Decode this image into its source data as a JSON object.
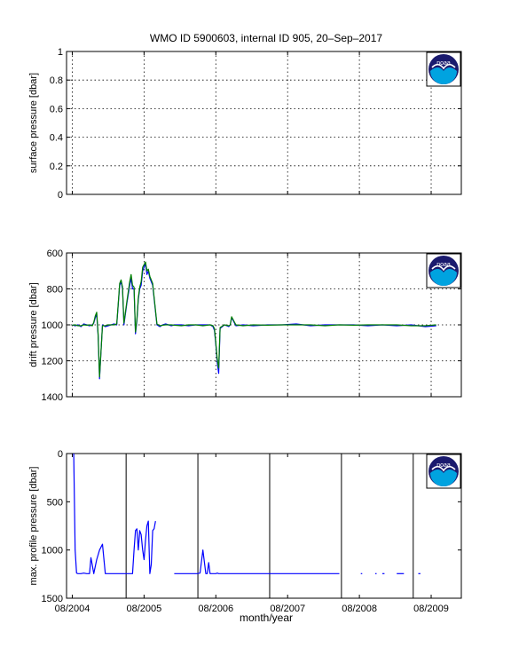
{
  "figure": {
    "title": "WMO ID 5900603, internal ID 905, 20–Sep–2017",
    "xlabel": "month/year"
  },
  "logo": {
    "text": "noaa",
    "colors": {
      "outer": "#1a1a6e",
      "inner": "#00a3e0",
      "bird": "#ffffff"
    }
  },
  "chart_data": [
    {
      "type": "line",
      "ylabel": "surface pressure [dbar]",
      "ylim": [
        0,
        1
      ],
      "y_ticks": [
        "0",
        "0.2",
        "0.4",
        "0.6",
        "0.8",
        "1"
      ],
      "grid": true,
      "series": []
    },
    {
      "type": "line",
      "ylabel": "drift pressure [dbar]",
      "ylim": [
        600,
        1400
      ],
      "y_reversed": true,
      "y_ticks": [
        "600",
        "800",
        "1000",
        "1200",
        "1400"
      ],
      "grid": true,
      "series": [
        {
          "color": "#0000ff",
          "x": [
            2004.58,
            2004.62,
            2004.66,
            2004.7,
            2004.74,
            2004.78,
            2004.82,
            2004.86,
            2004.88,
            2004.9,
            2004.92,
            2004.94,
            2004.96,
            2005.0,
            2005.04,
            2005.08,
            2005.12,
            2005.16,
            2005.2,
            2005.24,
            2005.26,
            2005.28,
            2005.3,
            2005.34,
            2005.38,
            2005.4,
            2005.42,
            2005.44,
            2005.46,
            2005.48,
            2005.5,
            2005.52,
            2005.54,
            2005.56,
            2005.6,
            2005.62,
            2005.64,
            2005.66,
            2005.7,
            2005.76,
            2005.8,
            2005.84,
            2005.88,
            2005.92,
            2005.96,
            2006.0,
            2006.1,
            2006.2,
            2006.3,
            2006.4,
            2006.5,
            2006.54,
            2006.56,
            2006.58,
            2006.6,
            2006.62,
            2006.64,
            2006.7,
            2006.76,
            2006.78,
            2006.8,
            2006.86,
            2006.96,
            2007.1,
            2007.3,
            2007.5,
            2007.7,
            2007.9,
            2008.1,
            2008.3,
            2008.5,
            2008.7,
            2008.9,
            2009.1,
            2009.3,
            2009.5,
            2009.65
          ],
          "y": [
            1000,
            1005,
            1000,
            1010,
            995,
            1000,
            1005,
            1000,
            990,
            960,
            940,
            1060,
            1300,
            1000,
            1010,
            1005,
            1000,
            995,
            1000,
            780,
            760,
            800,
            1000,
            880,
            780,
            740,
            800,
            800,
            1050,
            980,
            860,
            800,
            780,
            700,
            660,
            720,
            700,
            740,
            780,
            1000,
            1010,
            1000,
            995,
            1000,
            1005,
            1000,
            1000,
            1005,
            1000,
            1000,
            1000,
            1010,
            1030,
            1110,
            1210,
            1270,
            1020,
            1000,
            1010,
            1000,
            960,
            1005,
            1000,
            1005,
            1000,
            1000,
            995,
            1005,
            1000,
            1000,
            1000,
            1005,
            1000,
            1005,
            1000,
            1010,
            1005
          ]
        },
        {
          "color": "#008000",
          "x": [
            2004.58,
            2004.62,
            2004.66,
            2004.7,
            2004.74,
            2004.78,
            2004.82,
            2004.86,
            2004.88,
            2004.9,
            2004.92,
            2004.94,
            2004.96,
            2005.0,
            2005.04,
            2005.08,
            2005.12,
            2005.16,
            2005.2,
            2005.24,
            2005.26,
            2005.28,
            2005.3,
            2005.34,
            2005.38,
            2005.4,
            2005.42,
            2005.44,
            2005.46,
            2005.48,
            2005.5,
            2005.52,
            2005.54,
            2005.56,
            2005.6,
            2005.62,
            2005.64,
            2005.66,
            2005.7,
            2005.76,
            2005.8,
            2005.84,
            2005.88,
            2005.92,
            2005.96,
            2006.0,
            2006.1,
            2006.2,
            2006.3,
            2006.4,
            2006.5,
            2006.54,
            2006.56,
            2006.58,
            2006.6,
            2006.62,
            2006.64,
            2006.7,
            2006.76,
            2006.78,
            2006.8,
            2006.86,
            2006.96,
            2007.1,
            2007.3,
            2007.5,
            2007.7,
            2007.9,
            2008.1,
            2008.3,
            2008.5,
            2008.7,
            2008.9,
            2009.1,
            2009.3,
            2009.5,
            2009.65
          ],
          "y": [
            1002,
            1000,
            1005,
            1005,
            1000,
            1002,
            1000,
            1005,
            985,
            950,
            930,
            1050,
            1290,
            1005,
            1005,
            1000,
            1000,
            1000,
            995,
            770,
            750,
            790,
            990,
            870,
            760,
            720,
            780,
            790,
            1040,
            970,
            850,
            790,
            760,
            680,
            650,
            700,
            690,
            730,
            770,
            995,
            1005,
            1002,
            1000,
            1000,
            1000,
            1002,
            1005,
            1000,
            1000,
            1005,
            1000,
            1005,
            1020,
            1100,
            1190,
            1240,
            1015,
            1000,
            1005,
            1000,
            955,
            1000,
            1005,
            1000,
            1002,
            1000,
            1000,
            1000,
            1005,
            1000,
            1002,
            1000,
            1000,
            1000,
            1005,
            1005,
            1000
          ]
        }
      ]
    },
    {
      "type": "line",
      "ylabel": "max. profile pressure [dbar]",
      "ylim": [
        0,
        1500
      ],
      "y_reversed": true,
      "y_ticks": [
        "0",
        "500",
        "1000",
        "1500"
      ],
      "grid": false,
      "x_ticks": [
        "08/2004",
        "08/2005",
        "08/2006",
        "08/2007",
        "08/2008",
        "08/2009"
      ],
      "vlines_x": [
        2005.33,
        2006.33,
        2007.33,
        2008.33,
        2009.33
      ],
      "series": [
        {
          "color": "#0000ff",
          "x": [
            2004.6,
            2004.62,
            2004.64,
            2004.66,
            2004.7,
            2004.74,
            2004.78,
            2004.82,
            2004.84,
            2004.86,
            2004.88,
            2004.92,
            2004.96,
            2005.0,
            2005.04,
            2005.08,
            2005.12,
            2005.16,
            2005.2,
            2005.24,
            2005.28,
            2005.32,
            2005.36,
            2005.4,
            2005.42,
            2005.44,
            2005.46,
            2005.48,
            2005.5,
            2005.52,
            2005.54,
            2005.56,
            2005.58,
            2005.6,
            2005.62,
            2005.64,
            2005.66,
            2005.68,
            2005.7,
            2005.72,
            2005.74
          ],
          "y": [
            0,
            1000,
            1240,
            1245,
            1245,
            1240,
            1245,
            1245,
            1080,
            1160,
            1245,
            1100,
            1000,
            940,
            1245,
            1245,
            1245,
            1245,
            1245,
            1245,
            1245,
            1245,
            1245,
            1245,
            1245,
            1000,
            800,
            780,
            1000,
            800,
            840,
            1000,
            1100,
            900,
            750,
            700,
            1245,
            1150,
            800,
            780,
            700
          ]
        },
        {
          "color": "#0000ff",
          "x": [
            2006.0,
            2006.1,
            2006.2,
            2006.24,
            2006.28,
            2006.3,
            2006.32,
            2006.36,
            2006.4,
            2006.44,
            2006.46,
            2006.48,
            2006.5,
            2006.54,
            2006.56,
            2006.58,
            2006.6,
            2006.62,
            2006.64,
            2006.7,
            2006.8,
            2006.9,
            2007.0,
            2007.2,
            2007.4,
            2007.6,
            2007.8,
            2008.0,
            2008.2,
            2008.3
          ],
          "y": [
            1245,
            1245,
            1245,
            1245,
            1245,
            1245,
            1245,
            1240,
            1000,
            1245,
            1245,
            1130,
            1245,
            1245,
            1245,
            1245,
            1240,
            1245,
            1245,
            1245,
            1245,
            1245,
            1245,
            1245,
            1245,
            1245,
            1245,
            1245,
            1245,
            1245
          ]
        },
        {
          "color": "#0000ff",
          "x": [
            2008.6,
            2008.62
          ],
          "y": [
            1245,
            1245
          ]
        },
        {
          "color": "#0000ff",
          "x": [
            2008.8,
            2008.82
          ],
          "y": [
            1245,
            1245
          ]
        },
        {
          "color": "#0000ff",
          "x": [
            2008.9,
            2008.93
          ],
          "y": [
            1245,
            1245
          ]
        },
        {
          "color": "#0000ff",
          "x": [
            2009.1,
            2009.2
          ],
          "y": [
            1245,
            1245
          ]
        },
        {
          "color": "#0000ff",
          "x": [
            2009.4,
            2009.43
          ],
          "y": [
            1245,
            1245
          ]
        }
      ]
    }
  ]
}
